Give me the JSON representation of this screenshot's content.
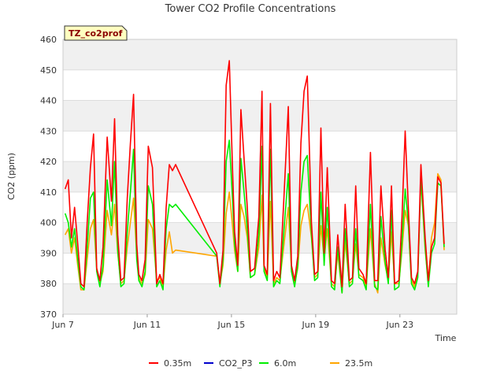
{
  "chart_data": {
    "type": "line",
    "title": "Tower CO2 Profile Concentrations",
    "badge": "TZ_co2prof",
    "xlabel": "Time",
    "ylabel": "CO2 (ppm)",
    "ylim": [
      370,
      460
    ],
    "xlim": [
      7,
      25.7
    ],
    "yticks": [
      370,
      380,
      390,
      400,
      410,
      420,
      430,
      440,
      450,
      460
    ],
    "xticks": [
      {
        "value": 7,
        "label": "Jun 7"
      },
      {
        "value": 11,
        "label": "Jun 11"
      },
      {
        "value": 15,
        "label": "Jun 15"
      },
      {
        "value": 19,
        "label": "Jun 19"
      },
      {
        "value": 23,
        "label": "Jun 23"
      }
    ],
    "legend_position": "bottom",
    "series": [
      {
        "name": "0.35m",
        "color": "#ff0000",
        "x": [
          7.1,
          7.25,
          7.4,
          7.55,
          7.7,
          7.85,
          8.0,
          8.15,
          8.3,
          8.45,
          8.6,
          8.75,
          8.9,
          9.1,
          9.3,
          9.45,
          9.6,
          9.75,
          9.9,
          10.05,
          10.2,
          10.35,
          10.5,
          10.6,
          10.75,
          10.9,
          11.05,
          11.25,
          11.45,
          11.6,
          11.75,
          11.9,
          12.05,
          12.2,
          12.35,
          14.3,
          14.45,
          14.6,
          14.75,
          14.9,
          15.05,
          15.15,
          15.3,
          15.45,
          15.6,
          15.75,
          15.9,
          16.1,
          16.3,
          16.45,
          16.55,
          16.7,
          16.85,
          17.0,
          17.15,
          17.3,
          17.5,
          17.7,
          17.85,
          18.0,
          18.15,
          18.3,
          18.45,
          18.6,
          18.8,
          18.95,
          19.1,
          19.25,
          19.4,
          19.55,
          19.75,
          19.9,
          20.05,
          20.25,
          20.4,
          20.6,
          20.75,
          20.9,
          21.05,
          21.25,
          21.4,
          21.6,
          21.8,
          21.95,
          22.1,
          22.3,
          22.45,
          22.6,
          22.75,
          22.95,
          23.1,
          23.25,
          23.4,
          23.55,
          23.7,
          23.85,
          24.0,
          24.2,
          24.35,
          24.5,
          24.65,
          24.8,
          24.95,
          25.1
        ],
        "y": [
          411,
          414,
          395,
          405,
          393,
          380,
          379,
          400,
          418,
          429,
          385,
          381,
          392,
          428,
          407,
          434,
          396,
          381,
          382,
          408,
          426,
          442,
          393,
          383,
          381,
          388,
          425,
          418,
          380,
          383,
          380,
          405,
          419,
          417,
          419,
          390,
          380,
          391,
          445,
          453,
          418,
          397,
          386,
          437,
          421,
          405,
          384,
          385,
          402,
          443,
          386,
          383,
          439,
          381,
          384,
          382,
          409,
          438,
          386,
          381,
          389,
          426,
          443,
          448,
          400,
          383,
          384,
          431,
          390,
          418,
          381,
          380,
          396,
          379,
          406,
          381,
          382,
          412,
          385,
          383,
          380,
          423,
          381,
          381,
          412,
          391,
          382,
          412,
          380,
          381,
          402,
          430,
          405,
          382,
          380,
          384,
          419,
          395,
          381,
          392,
          395,
          415,
          413,
          393
        ],
        "smooth": false
      },
      {
        "name": "CO2_P3",
        "color": "#0000cc",
        "x": [],
        "y": []
      },
      {
        "name": "6.0m",
        "color": "#00ee00",
        "x": [
          7.1,
          7.25,
          7.4,
          7.55,
          7.7,
          7.85,
          8.0,
          8.15,
          8.3,
          8.45,
          8.6,
          8.75,
          8.9,
          9.1,
          9.3,
          9.45,
          9.6,
          9.75,
          9.9,
          10.05,
          10.2,
          10.35,
          10.5,
          10.6,
          10.75,
          10.9,
          11.05,
          11.25,
          11.45,
          11.6,
          11.75,
          11.9,
          12.05,
          12.2,
          12.35,
          14.3,
          14.45,
          14.6,
          14.75,
          14.9,
          15.05,
          15.15,
          15.3,
          15.45,
          15.6,
          15.75,
          15.9,
          16.1,
          16.3,
          16.45,
          16.55,
          16.7,
          16.85,
          17.0,
          17.15,
          17.3,
          17.5,
          17.7,
          17.85,
          18.0,
          18.15,
          18.3,
          18.45,
          18.6,
          18.8,
          18.95,
          19.1,
          19.25,
          19.4,
          19.55,
          19.75,
          19.9,
          20.05,
          20.25,
          20.4,
          20.6,
          20.75,
          20.9,
          21.05,
          21.25,
          21.4,
          21.6,
          21.8,
          21.95,
          22.1,
          22.3,
          22.45,
          22.6,
          22.75,
          22.95,
          23.1,
          23.25,
          23.4,
          23.55,
          23.7,
          23.85,
          24.0,
          24.2,
          24.35,
          24.5,
          24.65,
          24.8,
          24.95,
          25.1
        ],
        "y": [
          403,
          400,
          392,
          398,
          388,
          379,
          378,
          392,
          408,
          410,
          384,
          379,
          386,
          414,
          399,
          420,
          391,
          379,
          380,
          397,
          410,
          424,
          388,
          381,
          379,
          384,
          412,
          406,
          379,
          381,
          378,
          398,
          406,
          405,
          406,
          389,
          379,
          388,
          420,
          427,
          408,
          393,
          384,
          421,
          410,
          398,
          382,
          383,
          396,
          425,
          384,
          381,
          424,
          379,
          381,
          380,
          398,
          416,
          384,
          379,
          386,
          410,
          420,
          422,
          396,
          381,
          382,
          410,
          386,
          405,
          379,
          378,
          392,
          377,
          398,
          379,
          380,
          398,
          382,
          381,
          378,
          406,
          379,
          378,
          402,
          387,
          380,
          404,
          378,
          379,
          394,
          411,
          400,
          380,
          378,
          382,
          415,
          392,
          379,
          390,
          393,
          413,
          412,
          392
        ],
        "smooth": false
      },
      {
        "name": "23.5m",
        "color": "#ffa500",
        "x": [
          7.1,
          7.25,
          7.4,
          7.55,
          7.7,
          7.85,
          8.0,
          8.15,
          8.3,
          8.45,
          8.6,
          8.75,
          8.9,
          9.1,
          9.3,
          9.45,
          9.6,
          9.75,
          9.9,
          10.05,
          10.2,
          10.35,
          10.5,
          10.6,
          10.75,
          10.9,
          11.05,
          11.25,
          11.45,
          11.6,
          11.75,
          11.9,
          12.05,
          12.2,
          12.35,
          14.3,
          14.45,
          14.6,
          14.75,
          14.9,
          15.05,
          15.15,
          15.3,
          15.45,
          15.6,
          15.75,
          15.9,
          16.1,
          16.3,
          16.45,
          16.55,
          16.7,
          16.85,
          17.0,
          17.15,
          17.3,
          17.5,
          17.7,
          17.85,
          18.0,
          18.15,
          18.3,
          18.45,
          18.6,
          18.8,
          18.95,
          19.1,
          19.25,
          19.4,
          19.55,
          19.75,
          19.9,
          20.05,
          20.25,
          20.4,
          20.6,
          20.75,
          20.9,
          21.05,
          21.25,
          21.4,
          21.6,
          21.8,
          21.95,
          22.1,
          22.3,
          22.45,
          22.6,
          22.75,
          22.95,
          23.1,
          23.25,
          23.4,
          23.55,
          23.7,
          23.85,
          24.0,
          24.2,
          24.35,
          24.5,
          24.65,
          24.8,
          24.95,
          25.1
        ],
        "y": [
          396,
          398,
          390,
          395,
          386,
          378,
          378,
          388,
          398,
          401,
          385,
          380,
          384,
          404,
          396,
          406,
          390,
          380,
          381,
          392,
          400,
          408,
          389,
          382,
          380,
          383,
          401,
          398,
          381,
          382,
          379,
          391,
          397,
          390,
          391,
          389,
          380,
          386,
          403,
          410,
          399,
          391,
          384,
          406,
          402,
          395,
          382,
          383,
          392,
          409,
          385,
          382,
          407,
          380,
          382,
          381,
          393,
          405,
          385,
          380,
          385,
          399,
          404,
          406,
          395,
          382,
          383,
          399,
          388,
          398,
          380,
          379,
          390,
          377,
          394,
          380,
          381,
          393,
          383,
          382,
          379,
          398,
          380,
          377,
          395,
          386,
          381,
          397,
          380,
          380,
          391,
          404,
          399,
          381,
          379,
          383,
          414,
          391,
          380,
          395,
          400,
          416,
          414,
          391
        ],
        "smooth": false
      }
    ]
  }
}
